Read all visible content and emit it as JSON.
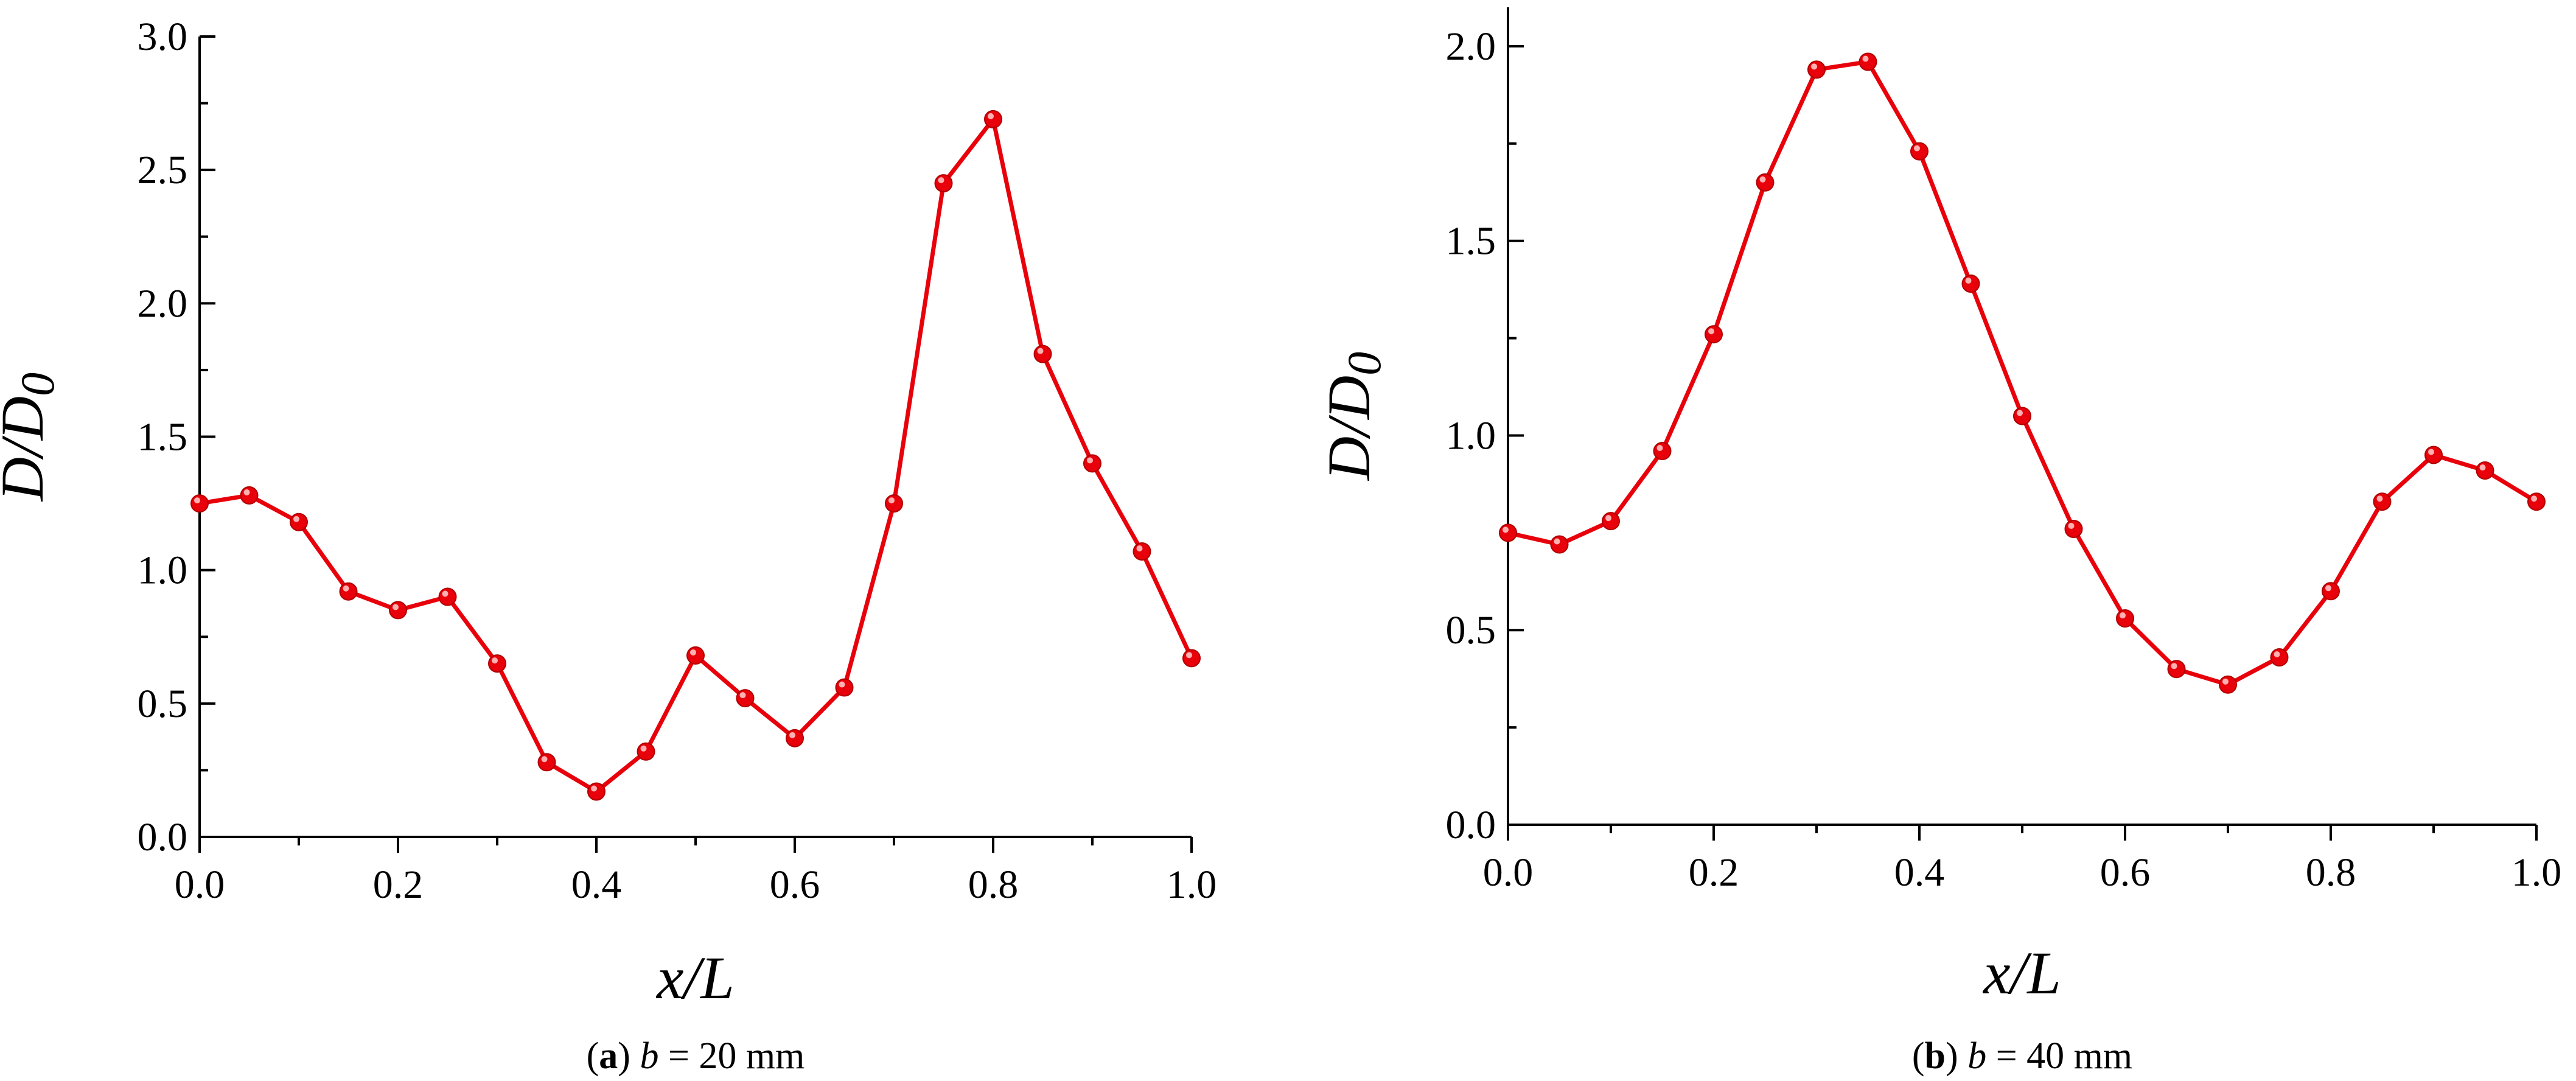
{
  "colors": {
    "series": "#e8000a",
    "axis": "#000000"
  },
  "chart_data": [
    {
      "type": "line",
      "panel": "a",
      "caption": {
        "letter": "a",
        "var": "b",
        "rest": " = 20 mm"
      },
      "xlabel": "x/L",
      "ylabel": "D/D0",
      "xlim": [
        0.0,
        1.0
      ],
      "ylim": [
        0.0,
        3.0
      ],
      "x_ticks": [
        "0.0",
        "0.2",
        "0.4",
        "0.6",
        "0.8",
        "1.0"
      ],
      "y_ticks": [
        "0.0",
        "0.5",
        "1.0",
        "1.5",
        "2.0",
        "2.5",
        "3.0"
      ],
      "grid": false,
      "series": [
        {
          "x": [
            0.0,
            0.05,
            0.1,
            0.15,
            0.2,
            0.25,
            0.3,
            0.35,
            0.4,
            0.45,
            0.5,
            0.55,
            0.6,
            0.65,
            0.7,
            0.75,
            0.8,
            0.85,
            0.9,
            0.95,
            1.0
          ],
          "y": [
            1.25,
            1.28,
            1.18,
            0.92,
            0.85,
            0.9,
            0.65,
            0.28,
            0.17,
            0.32,
            0.68,
            0.52,
            0.37,
            0.56,
            1.25,
            2.45,
            2.69,
            1.81,
            1.4,
            1.07,
            0.67
          ]
        }
      ]
    },
    {
      "type": "line",
      "panel": "b",
      "caption": {
        "letter": "b",
        "var": "b",
        "rest": " = 40 mm"
      },
      "xlabel": "x/L",
      "ylabel": "D/D0",
      "xlim": [
        0.0,
        1.0
      ],
      "ylim": [
        0.0,
        2.1
      ],
      "x_ticks": [
        "0.0",
        "0.2",
        "0.4",
        "0.6",
        "0.8",
        "1.0"
      ],
      "y_ticks": [
        "0.0",
        "0.5",
        "1.0",
        "1.5",
        "2.0"
      ],
      "grid": false,
      "series": [
        {
          "x": [
            0.0,
            0.05,
            0.1,
            0.15,
            0.2,
            0.25,
            0.3,
            0.35,
            0.4,
            0.45,
            0.5,
            0.55,
            0.6,
            0.65,
            0.7,
            0.75,
            0.8,
            0.85,
            0.9,
            0.95,
            1.0
          ],
          "y": [
            0.75,
            0.72,
            0.78,
            0.96,
            1.26,
            1.65,
            1.94,
            1.96,
            1.73,
            1.39,
            1.05,
            0.76,
            0.53,
            0.4,
            0.36,
            0.43,
            0.6,
            0.83,
            0.95,
            0.91,
            0.83
          ]
        }
      ]
    }
  ]
}
